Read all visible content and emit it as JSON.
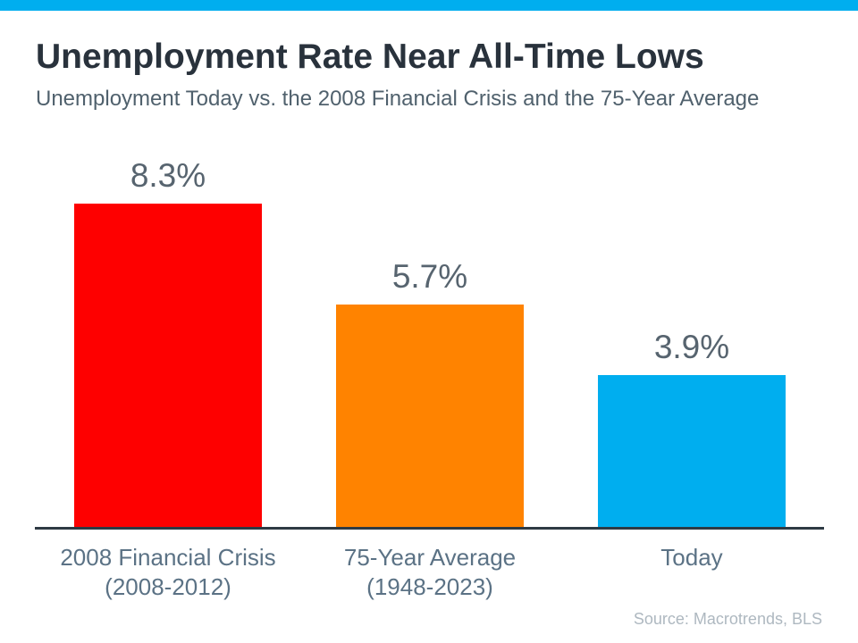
{
  "accent_color": "#00aeef",
  "axis_color": "#2e3a44",
  "header": {
    "title": "Unemployment Rate Near All-Time Lows",
    "subtitle": "Unemployment Today vs. the 2008 Financial Crisis and the 75-Year Average"
  },
  "source_credit": "Source: Macrotrends, BLS",
  "chart_data": {
    "type": "bar",
    "title": "Unemployment Rate Near All-Time Lows",
    "subtitle": "Unemployment Today vs. the 2008 Financial Crisis and the 75-Year Average",
    "categories": [
      "2008 Financial Crisis (2008-2012)",
      "75-Year Average (1948-2023)",
      "Today"
    ],
    "category_lines": [
      [
        "2008 Financial Crisis",
        "(2008-2012)"
      ],
      [
        "75-Year Average",
        "(1948-2023)"
      ],
      [
        "Today"
      ]
    ],
    "values": [
      8.3,
      5.7,
      3.9
    ],
    "value_labels": [
      "8.3%",
      "5.7%",
      "3.9%"
    ],
    "bar_colors": [
      "#fe0000",
      "#ff8300",
      "#00aeef"
    ],
    "xlabel": "",
    "ylabel": "",
    "ylim": [
      0,
      8.3
    ],
    "grid": false,
    "legend": false,
    "y_axis_visible": false,
    "data_labels_position": "above-bar"
  }
}
